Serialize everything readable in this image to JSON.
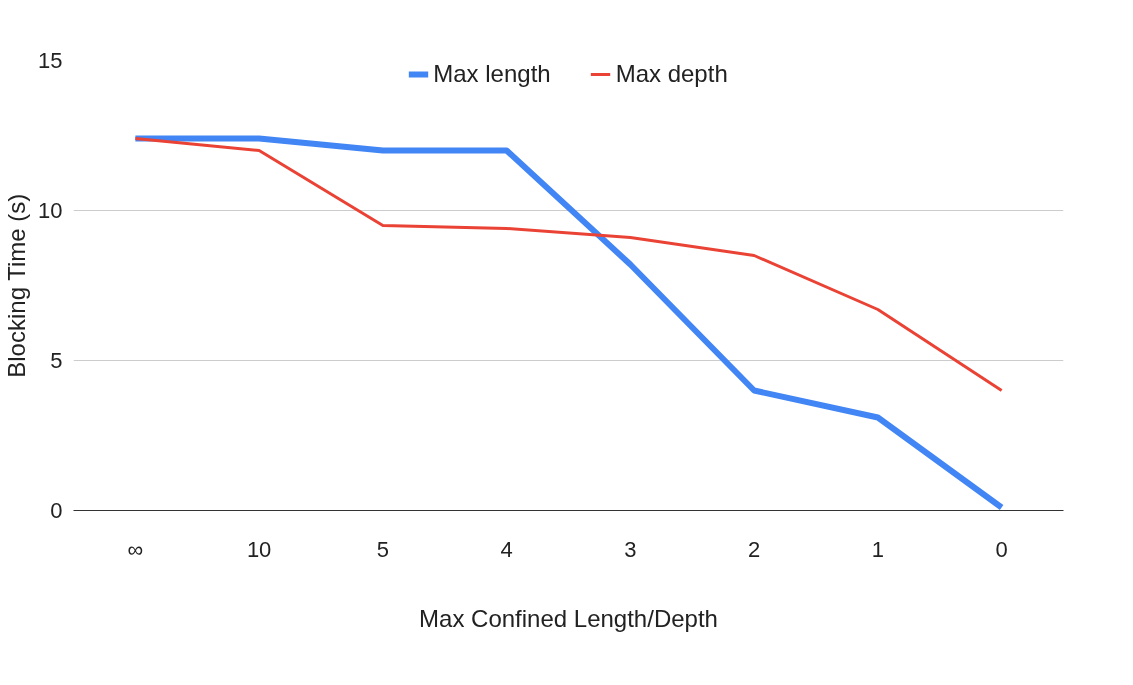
{
  "chart_data": {
    "type": "line",
    "xlabel": "Max Confined Length/Depth",
    "ylabel": "Blocking Time (s)",
    "categories": [
      "∞",
      "10",
      "5",
      "4",
      "3",
      "2",
      "1",
      "0"
    ],
    "series": [
      {
        "name": "Max length",
        "color": "#4285f4",
        "values": [
          12.4,
          12.4,
          12.0,
          12.0,
          8.2,
          4.0,
          3.1,
          0.1
        ]
      },
      {
        "name": "Max depth",
        "color": "#ea4335",
        "values": [
          12.4,
          12.0,
          9.5,
          9.4,
          9.1,
          8.5,
          6.7,
          4.0
        ]
      }
    ],
    "ylim": [
      0,
      15
    ],
    "yticks": [
      0,
      5,
      10,
      15
    ],
    "grid": "y",
    "legend": "top",
    "marker": "none",
    "line_style": "solid"
  }
}
